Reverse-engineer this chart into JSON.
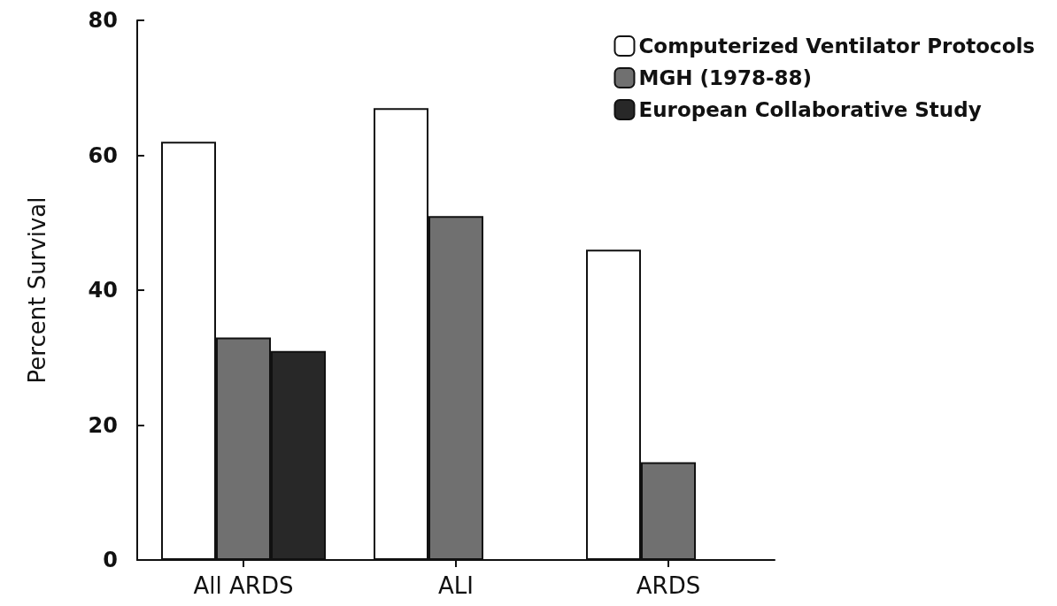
{
  "chart_data": {
    "type": "bar",
    "ylabel": "Percent Survival",
    "categories": [
      "All ARDS",
      "ALI",
      "ARDS"
    ],
    "series": [
      {
        "name": "Computerized Ventilator Protocols",
        "color": "#ffffff",
        "values": [
          62,
          67,
          46
        ]
      },
      {
        "name": "MGH (1978-88)",
        "color": "#707070",
        "values": [
          33,
          51,
          14.5
        ]
      },
      {
        "name": "European Collaborative Study",
        "color": "#282828",
        "values": [
          31,
          null,
          null
        ]
      }
    ],
    "ylim": [
      0,
      80
    ],
    "yticks": [
      0,
      20,
      40,
      60,
      80
    ],
    "grid": false,
    "legend": "top right"
  }
}
